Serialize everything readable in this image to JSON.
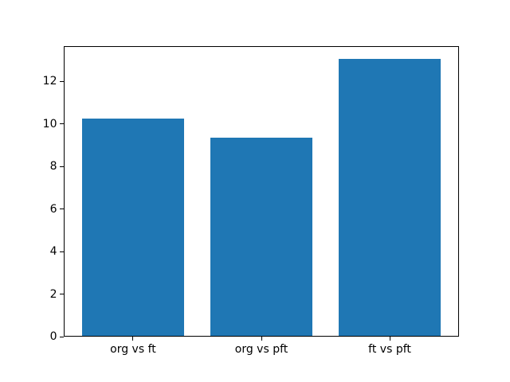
{
  "chart_data": {
    "type": "bar",
    "title": "",
    "xlabel": "",
    "ylabel": "",
    "categories": [
      "org vs ft",
      "org vs pft",
      "ft vs pft"
    ],
    "values": [
      10.2,
      9.3,
      13.0
    ],
    "bar_color": "#1f77b4",
    "yticks": [
      0,
      2,
      4,
      6,
      8,
      10,
      12
    ],
    "ylim": [
      0,
      13.65
    ],
    "xlim": [
      -0.54,
      2.54
    ],
    "bar_width": 0.8,
    "grid": false,
    "legend": "none",
    "background_color": "#ffffff"
  }
}
